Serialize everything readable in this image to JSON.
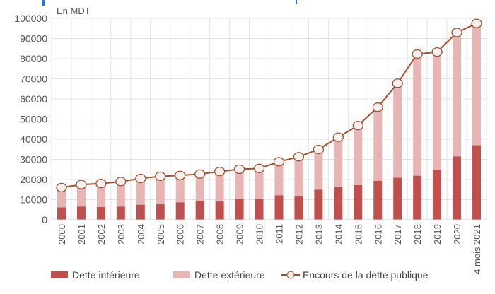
{
  "chart_data": {
    "type": "bar",
    "title": "",
    "unit_label": "En MDT",
    "xlabel": "",
    "ylabel": "",
    "ylim": [
      0,
      100000
    ],
    "yticks": [
      0,
      10000,
      20000,
      30000,
      40000,
      50000,
      60000,
      70000,
      80000,
      90000,
      100000
    ],
    "grid": true,
    "legend_position": "bottom",
    "categories": [
      "2000",
      "2001",
      "2002",
      "2003",
      "2004",
      "2005",
      "2006",
      "2007",
      "2008",
      "2009",
      "2010",
      "2011",
      "2012",
      "2013",
      "2014",
      "2015",
      "2016",
      "2017",
      "2018",
      "2019",
      "2020",
      "4 mois 2021"
    ],
    "series": [
      {
        "name": "Dette intérieure",
        "type": "bar-stacked",
        "color": "#c0504d",
        "values": [
          6200,
          6600,
          6400,
          6600,
          7500,
          7700,
          8700,
          9500,
          9100,
          10500,
          10200,
          12200,
          11800,
          15000,
          16200,
          17200,
          19400,
          20900,
          21900,
          24900,
          31500,
          37000
        ]
      },
      {
        "name": "Dette extérieure",
        "type": "bar-stacked",
        "color": "#e6b5b4",
        "values": [
          9800,
          10900,
          11600,
          12400,
          13000,
          13900,
          13300,
          13200,
          14900,
          14600,
          15300,
          16600,
          19500,
          19900,
          24800,
          29600,
          36500,
          46900,
          60400,
          58400,
          61500,
          60500
        ]
      },
      {
        "name": "Encours de la dette publique",
        "type": "line",
        "color": "#a0522d",
        "values": [
          16000,
          17500,
          18000,
          19000,
          20500,
          21600,
          22000,
          22700,
          24000,
          25100,
          25500,
          28800,
          31300,
          34900,
          41000,
          46800,
          55900,
          67800,
          82300,
          83300,
          93000,
          97500
        ]
      }
    ]
  }
}
